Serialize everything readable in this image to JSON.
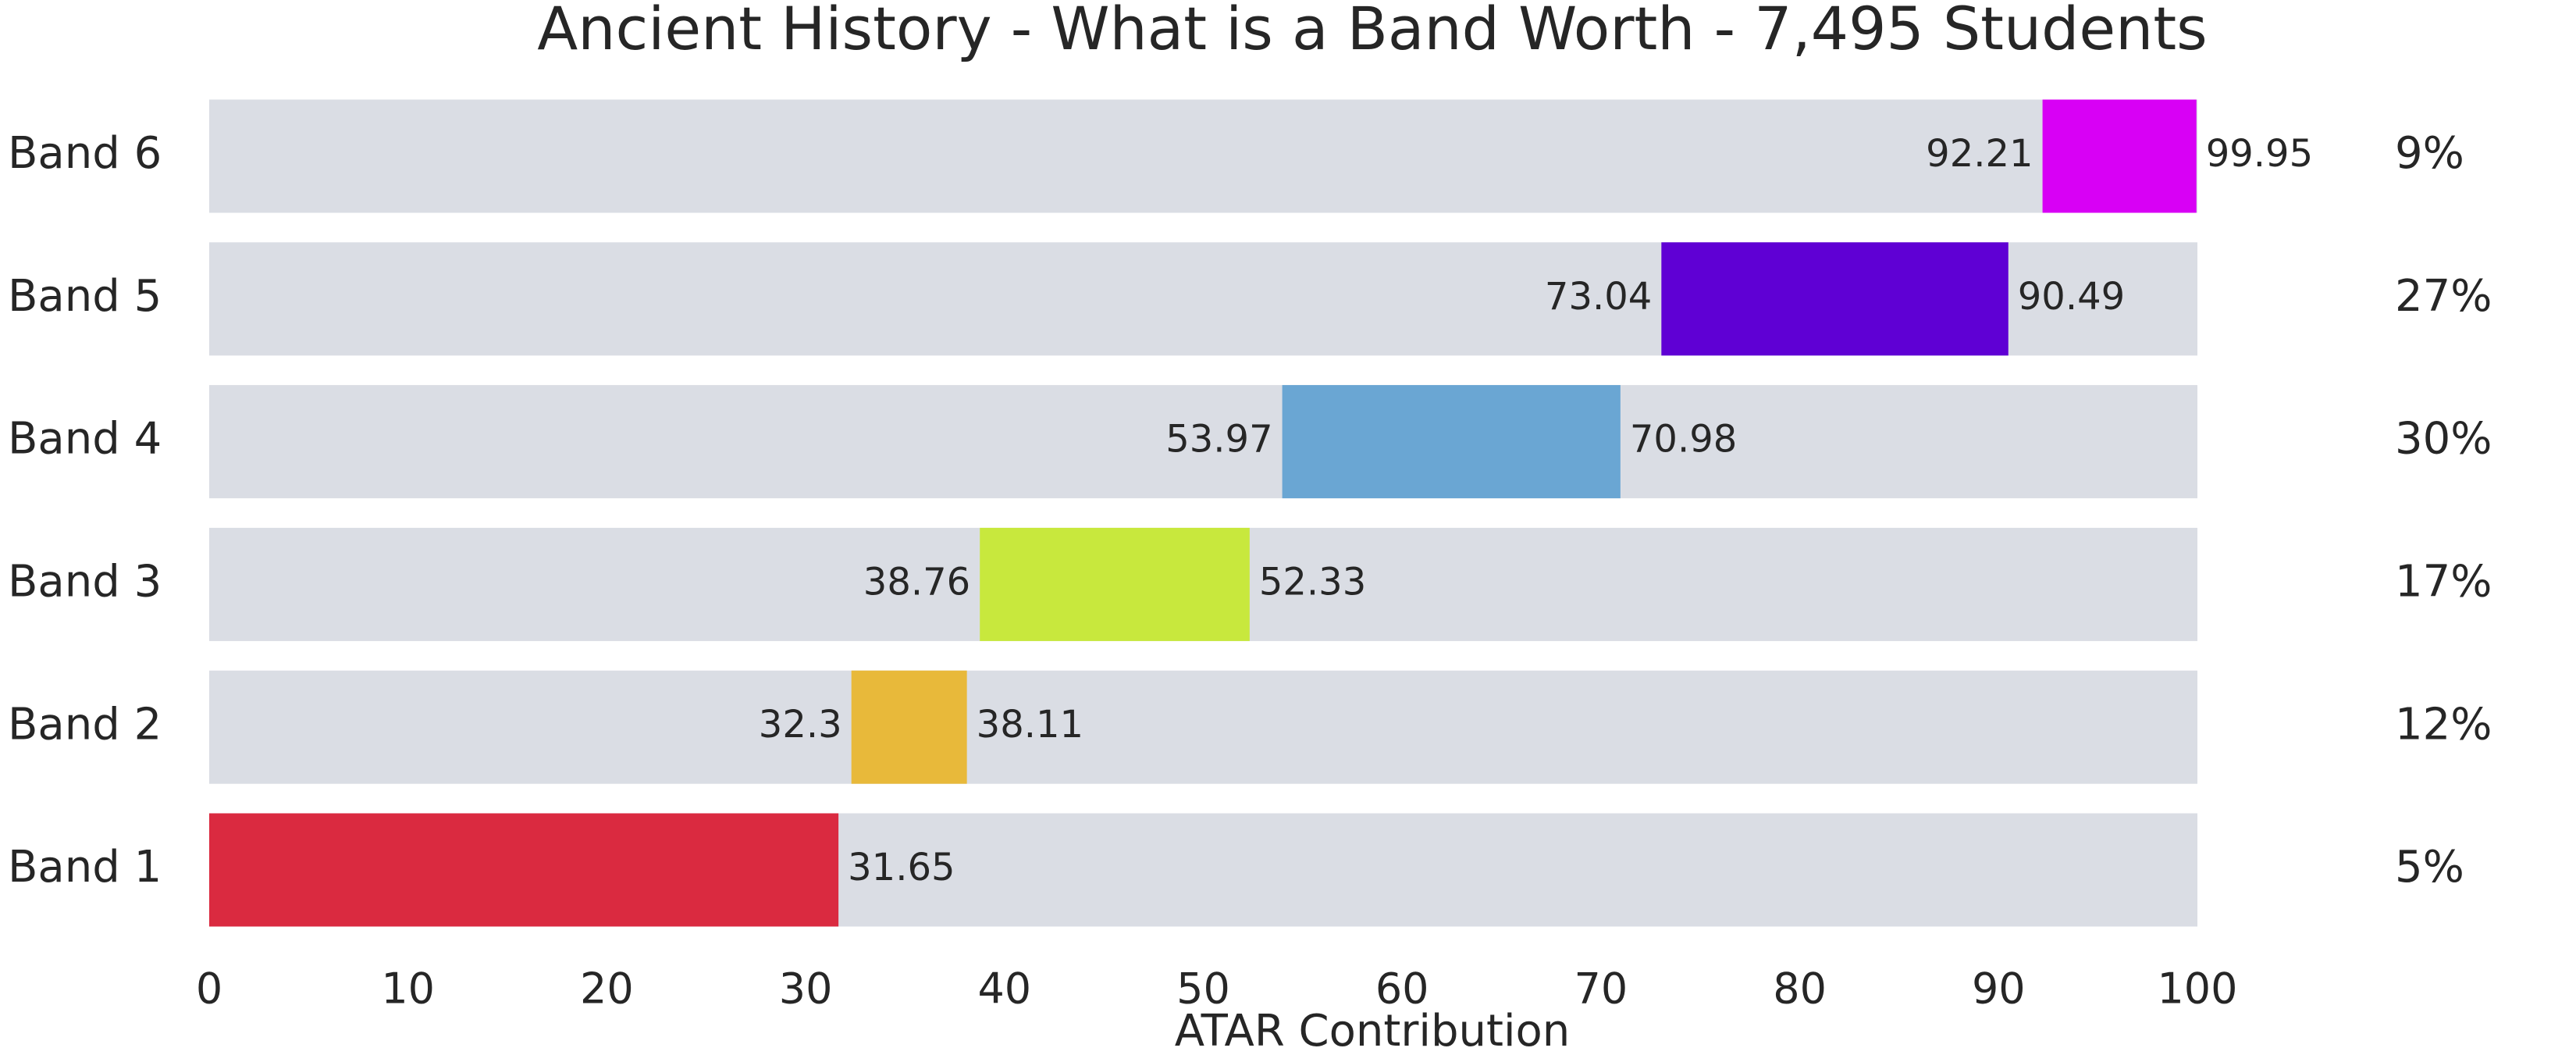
{
  "chart_data": {
    "type": "range-bar",
    "title": "Ancient History - What is a Band Worth - 7,495 Students",
    "xlabel": "ATAR Contribution",
    "categories": [
      "Band 1",
      "Band 2",
      "Band 3",
      "Band 4",
      "Band 5",
      "Band 6"
    ],
    "low": [
      null,
      32.3,
      38.76,
      53.97,
      73.04,
      92.21
    ],
    "high": [
      31.65,
      38.11,
      52.33,
      70.98,
      90.49,
      99.95
    ],
    "colors": [
      "#da2a40",
      "#e8b93a",
      "#c8e83d",
      "#6aa6d3",
      "#5f00d4",
      "#d800f5"
    ],
    "share_labels": [
      "5%",
      "12%",
      "17%",
      "30%",
      "27%",
      "9%"
    ],
    "track_color": "#dadde4",
    "xlim": [
      0,
      100
    ],
    "xticks": [
      0,
      10,
      20,
      30,
      40,
      50,
      60,
      70,
      80,
      90,
      100
    ]
  }
}
